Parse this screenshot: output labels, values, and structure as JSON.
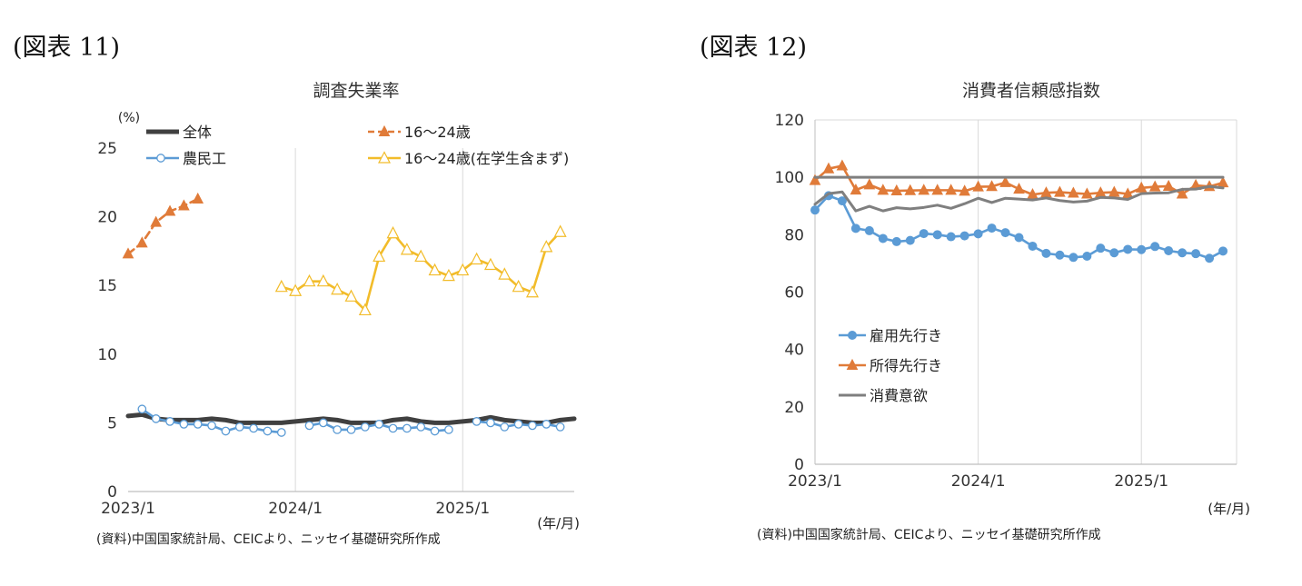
{
  "figures": [
    {
      "label": "(図表 11)",
      "source": "(資料)中国国家統計局、CEICより、ニッセイ基礎研究所作成"
    },
    {
      "label": "(図表 12)",
      "source": "(資料)中国国家統計局、CEICより、ニッセイ基礎研究所作成"
    }
  ],
  "chart_data": [
    {
      "type": "line",
      "title": "調査失業率",
      "ylabel": "(%)",
      "xlabel": "(年/月)",
      "ylim": [
        0,
        25
      ],
      "yticks": [
        0,
        5,
        10,
        15,
        20,
        25
      ],
      "x_tick_labels": [
        "2023/1",
        "2024/1",
        "2025/1"
      ],
      "x_tick_months": [
        0,
        12,
        24
      ],
      "x_range_months": [
        0,
        32
      ],
      "grid": "vertical",
      "legend_position": "top",
      "series": [
        {
          "name": "全体",
          "color": "#404040",
          "marker": "none",
          "dash": false,
          "start_month": 0,
          "values": [
            5.5,
            5.6,
            5.3,
            5.2,
            5.2,
            5.2,
            5.3,
            5.2,
            5.0,
            5.0,
            5.0,
            5.0,
            5.1,
            5.2,
            5.3,
            5.2,
            5.0,
            5.0,
            5.0,
            5.2,
            5.3,
            5.1,
            5.0,
            5.0,
            5.1,
            5.2,
            5.4,
            5.2,
            5.1,
            5.0,
            5.0,
            5.2,
            5.3
          ]
        },
        {
          "name": "16～24歳",
          "color": "#E07B39",
          "marker": "triangle-filled",
          "dash": true,
          "start_month": 0,
          "values": [
            17.3,
            18.1,
            19.6,
            20.4,
            20.8,
            21.3
          ]
        },
        {
          "name": "農民工",
          "color": "#5B9BD5",
          "marker": "circle-open",
          "dash": false,
          "start_month": 0,
          "values": [
            null,
            6.0,
            5.3,
            5.1,
            4.9,
            4.9,
            4.8,
            4.4,
            4.7,
            4.6,
            4.4,
            4.3,
            null,
            4.8,
            5.0,
            4.5,
            4.5,
            4.7,
            4.9,
            4.6,
            4.6,
            4.7,
            4.4,
            4.5,
            null,
            5.1,
            5.0,
            4.7,
            4.9,
            4.8,
            4.9,
            4.7
          ]
        },
        {
          "name": "16～24歳(在学生含まず)",
          "color": "#F2BC2A",
          "marker": "triangle-open",
          "dash": false,
          "start_month": 11,
          "values": [
            14.9,
            14.6,
            15.3,
            15.3,
            14.7,
            14.2,
            13.2,
            17.1,
            18.8,
            17.6,
            17.1,
            16.1,
            15.7,
            16.1,
            16.9,
            16.5,
            15.8,
            14.9,
            14.5,
            17.8,
            18.9
          ]
        }
      ]
    },
    {
      "type": "line",
      "title": "消費者信頼感指数",
      "xlabel": "(年/月)",
      "ylim": [
        0,
        120
      ],
      "yticks": [
        0,
        20,
        40,
        60,
        80,
        100,
        120
      ],
      "x_tick_labels": [
        "2023/1",
        "2024/1",
        "2025/1"
      ],
      "x_tick_months": [
        0,
        12,
        24
      ],
      "x_range_months": [
        0,
        31
      ],
      "grid": "vertical",
      "legend_position": "bottom-left",
      "series": [
        {
          "name": "雇用先行き",
          "color": "#5B9BD5",
          "marker": "circle-filled",
          "start_month": 0,
          "values": [
            88.6,
            93.6,
            91.8,
            82.2,
            81.4,
            78.7,
            77.6,
            78.0,
            80.4,
            80.0,
            79.3,
            79.6,
            80.3,
            82.3,
            80.7,
            79.0,
            76.0,
            73.5,
            72.9,
            72.1,
            72.5,
            75.3,
            73.7,
            74.9,
            74.8,
            75.9,
            74.4,
            73.7,
            73.4,
            71.8,
            74.3
          ]
        },
        {
          "name": "所得先行き",
          "color": "#E07B39",
          "marker": "triangle-filled",
          "start_month": 0,
          "values": [
            98.9,
            103.0,
            104.0,
            95.6,
            97.4,
            95.5,
            95.3,
            95.4,
            95.5,
            95.5,
            95.5,
            95.2,
            96.7,
            96.8,
            98.2,
            95.9,
            94.0,
            94.6,
            94.8,
            94.5,
            94.2,
            94.6,
            94.8,
            94.2,
            96.3,
            96.7,
            96.9,
            94.2,
            97.2,
            96.8,
            98.1
          ]
        },
        {
          "name": "消費意欲",
          "color": "#7F7F7F",
          "marker": "none",
          "start_month": 0,
          "values": [
            100,
            100,
            100,
            100,
            100,
            100,
            100,
            100,
            100,
            100,
            100,
            100,
            100,
            100,
            100,
            100,
            100,
            100,
            100,
            100,
            100,
            100,
            100,
            100,
            100,
            100,
            100,
            100,
            100,
            100,
            100
          ]
        },
        {
          "name": "",
          "color": "#7F7F7F",
          "marker": "none",
          "start_month": 0,
          "legend": false,
          "values": [
            90.6,
            94.3,
            94.9,
            88.3,
            89.9,
            88.3,
            89.4,
            89.0,
            89.5,
            90.3,
            89.2,
            90.8,
            92.7,
            91.2,
            92.7,
            92.4,
            92.1,
            92.8,
            91.9,
            91.4,
            91.7,
            93.0,
            92.8,
            92.3,
            94.3,
            94.5,
            94.6,
            95.8,
            95.9,
            96.8,
            96.3
          ]
        }
      ]
    }
  ]
}
